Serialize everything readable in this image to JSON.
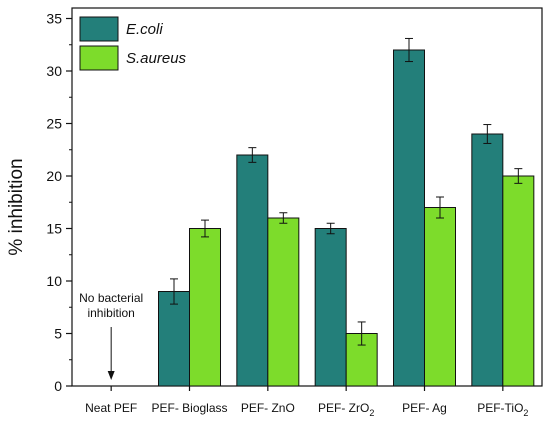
{
  "chart_data": {
    "type": "bar",
    "title": "",
    "xlabel": "",
    "ylabel": "% inhibition",
    "ylim": [
      0,
      36
    ],
    "yticks": [
      0,
      5,
      10,
      15,
      20,
      25,
      30,
      35
    ],
    "grid": false,
    "legend_position": "top-left",
    "categories": [
      "Neat PEF",
      "PEF- Bioglass",
      "PEF- ZnO",
      "PEF- ZrO2",
      "PEF- Ag",
      "PEF-TiO2"
    ],
    "category_display": [
      {
        "main": "Neat PEF",
        "sub": "",
        "after": ""
      },
      {
        "main": "PEF- Bioglass",
        "sub": "",
        "after": ""
      },
      {
        "main": "PEF- ZnO",
        "sub": "",
        "after": ""
      },
      {
        "main": "PEF- ZrO",
        "sub": "2",
        "after": ""
      },
      {
        "main": "PEF- Ag",
        "sub": "",
        "after": ""
      },
      {
        "main": "PEF-TiO",
        "sub": "2",
        "after": ""
      }
    ],
    "series": [
      {
        "name": "E.coli",
        "color": "#237f7a",
        "values": [
          0,
          9,
          22,
          15,
          32,
          24
        ],
        "errors": [
          0,
          1.2,
          0.7,
          0.5,
          1.1,
          0.9
        ]
      },
      {
        "name": "S.aureus",
        "color": "#7ddc2b",
        "values": [
          0,
          15,
          16,
          5,
          17,
          20
        ],
        "errors": [
          0,
          0.8,
          0.5,
          1.1,
          1.0,
          0.7
        ]
      }
    ],
    "annotation": {
      "lines": [
        "No bacterial",
        "inhibition"
      ],
      "category": "Neat PEF"
    }
  }
}
